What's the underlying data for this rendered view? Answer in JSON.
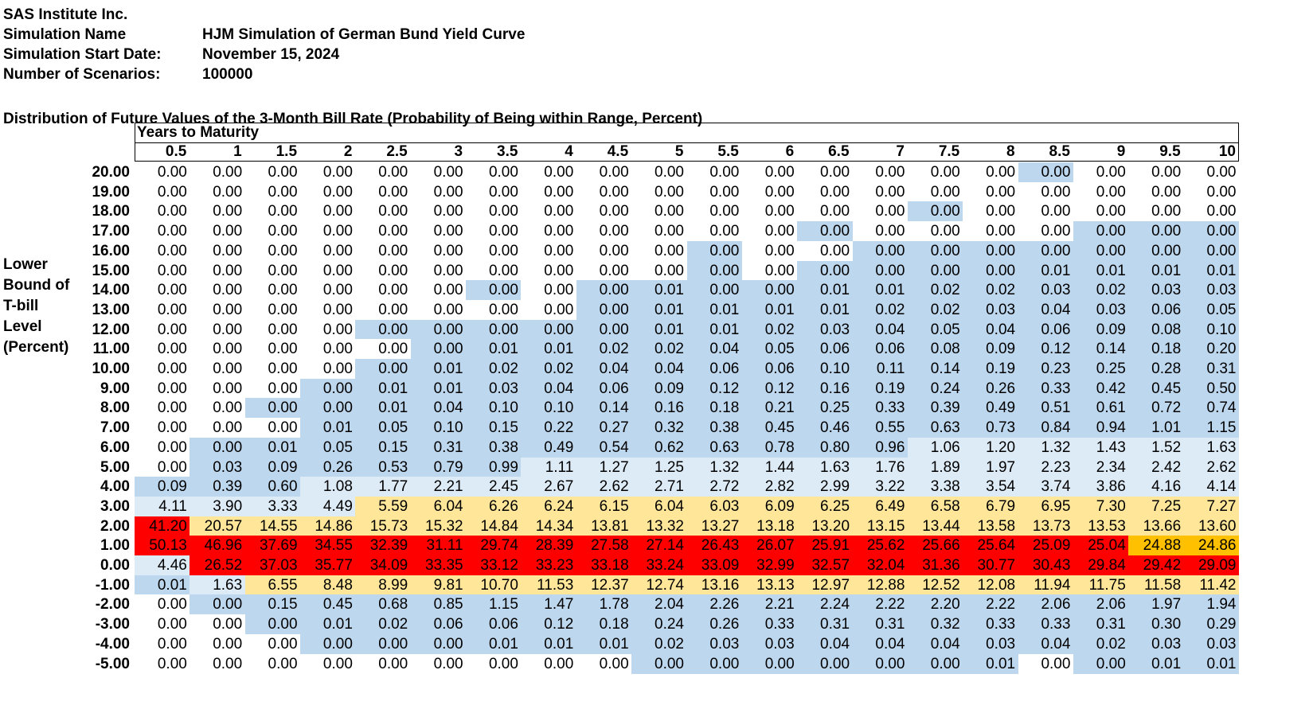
{
  "header": {
    "company": "SAS Institute Inc.",
    "rows": [
      {
        "label": "Simulation Name",
        "value": "HJM Simulation of German Bund Yield Curve"
      },
      {
        "label": "Simulation Start Date:",
        "value": "November 15, 2024"
      },
      {
        "label": "Number of Scenarios:",
        "value": "100000"
      }
    ]
  },
  "table": {
    "title": "Distribution of Future Values of the 3-Month Bill Rate (Probability of Being within Range, Percent)",
    "col_group_label": "Years to Maturity",
    "row_label": "Lower\nBound of\nT-bill\nLevel\n(Percent)",
    "columns": [
      "0.5",
      "1",
      "1.5",
      "2",
      "2.5",
      "3",
      "3.5",
      "4",
      "4.5",
      "5",
      "5.5",
      "6",
      "6.5",
      "7",
      "7.5",
      "8",
      "8.5",
      "9",
      "9.5",
      "10"
    ],
    "row_headers": [
      "20.00",
      "19.00",
      "18.00",
      "17.00",
      "16.00",
      "15.00",
      "14.00",
      "13.00",
      "12.00",
      "11.00",
      "10.00",
      "9.00",
      "8.00",
      "7.00",
      "6.00",
      "5.00",
      "4.00",
      "3.00",
      "2.00",
      "1.00",
      "0.00",
      "-1.00",
      "-2.00",
      "-3.00",
      "-4.00",
      "-5.00"
    ],
    "rows": [
      [
        "0.00",
        "0.00",
        "0.00",
        "0.00",
        "0.00",
        "0.00",
        "0.00",
        "0.00",
        "0.00",
        "0.00",
        "0.00",
        "0.00",
        "0.00",
        "0.00",
        "0.00",
        "0.00",
        "0.00",
        "0.00",
        "0.00",
        "0.00"
      ],
      [
        "0.00",
        "0.00",
        "0.00",
        "0.00",
        "0.00",
        "0.00",
        "0.00",
        "0.00",
        "0.00",
        "0.00",
        "0.00",
        "0.00",
        "0.00",
        "0.00",
        "0.00",
        "0.00",
        "0.00",
        "0.00",
        "0.00",
        "0.00"
      ],
      [
        "0.00",
        "0.00",
        "0.00",
        "0.00",
        "0.00",
        "0.00",
        "0.00",
        "0.00",
        "0.00",
        "0.00",
        "0.00",
        "0.00",
        "0.00",
        "0.00",
        "0.00",
        "0.00",
        "0.00",
        "0.00",
        "0.00",
        "0.00"
      ],
      [
        "0.00",
        "0.00",
        "0.00",
        "0.00",
        "0.00",
        "0.00",
        "0.00",
        "0.00",
        "0.00",
        "0.00",
        "0.00",
        "0.00",
        "0.00",
        "0.00",
        "0.00",
        "0.00",
        "0.00",
        "0.00",
        "0.00",
        "0.00"
      ],
      [
        "0.00",
        "0.00",
        "0.00",
        "0.00",
        "0.00",
        "0.00",
        "0.00",
        "0.00",
        "0.00",
        "0.00",
        "0.00",
        "0.00",
        "0.00",
        "0.00",
        "0.00",
        "0.00",
        "0.00",
        "0.00",
        "0.00",
        "0.00"
      ],
      [
        "0.00",
        "0.00",
        "0.00",
        "0.00",
        "0.00",
        "0.00",
        "0.00",
        "0.00",
        "0.00",
        "0.00",
        "0.00",
        "0.00",
        "0.00",
        "0.00",
        "0.00",
        "0.00",
        "0.01",
        "0.01",
        "0.01",
        "0.01"
      ],
      [
        "0.00",
        "0.00",
        "0.00",
        "0.00",
        "0.00",
        "0.00",
        "0.00",
        "0.00",
        "0.00",
        "0.01",
        "0.00",
        "0.00",
        "0.01",
        "0.01",
        "0.02",
        "0.02",
        "0.03",
        "0.02",
        "0.03",
        "0.03"
      ],
      [
        "0.00",
        "0.00",
        "0.00",
        "0.00",
        "0.00",
        "0.00",
        "0.00",
        "0.00",
        "0.00",
        "0.01",
        "0.01",
        "0.01",
        "0.01",
        "0.02",
        "0.02",
        "0.03",
        "0.04",
        "0.03",
        "0.06",
        "0.05"
      ],
      [
        "0.00",
        "0.00",
        "0.00",
        "0.00",
        "0.00",
        "0.00",
        "0.00",
        "0.00",
        "0.00",
        "0.01",
        "0.01",
        "0.02",
        "0.03",
        "0.04",
        "0.05",
        "0.04",
        "0.06",
        "0.09",
        "0.08",
        "0.10"
      ],
      [
        "0.00",
        "0.00",
        "0.00",
        "0.00",
        "0.00",
        "0.00",
        "0.01",
        "0.01",
        "0.02",
        "0.02",
        "0.04",
        "0.05",
        "0.06",
        "0.06",
        "0.08",
        "0.09",
        "0.12",
        "0.14",
        "0.18",
        "0.20"
      ],
      [
        "0.00",
        "0.00",
        "0.00",
        "0.00",
        "0.00",
        "0.01",
        "0.02",
        "0.02",
        "0.04",
        "0.04",
        "0.06",
        "0.06",
        "0.10",
        "0.11",
        "0.14",
        "0.19",
        "0.23",
        "0.25",
        "0.28",
        "0.31"
      ],
      [
        "0.00",
        "0.00",
        "0.00",
        "0.00",
        "0.01",
        "0.01",
        "0.03",
        "0.04",
        "0.06",
        "0.09",
        "0.12",
        "0.12",
        "0.16",
        "0.19",
        "0.24",
        "0.26",
        "0.33",
        "0.42",
        "0.45",
        "0.50"
      ],
      [
        "0.00",
        "0.00",
        "0.00",
        "0.00",
        "0.01",
        "0.04",
        "0.10",
        "0.10",
        "0.14",
        "0.16",
        "0.18",
        "0.21",
        "0.25",
        "0.33",
        "0.39",
        "0.49",
        "0.51",
        "0.61",
        "0.72",
        "0.74"
      ],
      [
        "0.00",
        "0.00",
        "0.00",
        "0.01",
        "0.05",
        "0.10",
        "0.15",
        "0.22",
        "0.27",
        "0.32",
        "0.38",
        "0.45",
        "0.46",
        "0.55",
        "0.63",
        "0.73",
        "0.84",
        "0.94",
        "1.01",
        "1.15"
      ],
      [
        "0.00",
        "0.00",
        "0.01",
        "0.05",
        "0.15",
        "0.31",
        "0.38",
        "0.49",
        "0.54",
        "0.62",
        "0.63",
        "0.78",
        "0.80",
        "0.96",
        "1.06",
        "1.20",
        "1.32",
        "1.43",
        "1.52",
        "1.63"
      ],
      [
        "0.00",
        "0.03",
        "0.09",
        "0.26",
        "0.53",
        "0.79",
        "0.99",
        "1.11",
        "1.27",
        "1.25",
        "1.32",
        "1.44",
        "1.63",
        "1.76",
        "1.89",
        "1.97",
        "2.23",
        "2.34",
        "2.42",
        "2.62"
      ],
      [
        "0.09",
        "0.39",
        "0.60",
        "1.08",
        "1.77",
        "2.21",
        "2.45",
        "2.67",
        "2.62",
        "2.71",
        "2.72",
        "2.82",
        "2.99",
        "3.22",
        "3.38",
        "3.54",
        "3.74",
        "3.86",
        "4.16",
        "4.14"
      ],
      [
        "4.11",
        "3.90",
        "3.33",
        "4.49",
        "5.59",
        "6.04",
        "6.26",
        "6.24",
        "6.15",
        "6.04",
        "6.03",
        "6.09",
        "6.25",
        "6.49",
        "6.58",
        "6.79",
        "6.95",
        "7.30",
        "7.25",
        "7.27"
      ],
      [
        "41.20",
        "20.57",
        "14.55",
        "14.86",
        "15.73",
        "15.32",
        "14.84",
        "14.34",
        "13.81",
        "13.32",
        "13.27",
        "13.18",
        "13.20",
        "13.15",
        "13.44",
        "13.58",
        "13.73",
        "13.53",
        "13.66",
        "13.60"
      ],
      [
        "50.13",
        "46.96",
        "37.69",
        "34.55",
        "32.39",
        "31.11",
        "29.74",
        "28.39",
        "27.58",
        "27.14",
        "26.43",
        "26.07",
        "25.91",
        "25.62",
        "25.66",
        "25.64",
        "25.09",
        "25.04",
        "24.88",
        "24.86"
      ],
      [
        "4.46",
        "26.52",
        "37.03",
        "35.77",
        "34.09",
        "33.35",
        "33.12",
        "33.23",
        "33.18",
        "33.24",
        "33.09",
        "32.99",
        "32.57",
        "32.04",
        "31.36",
        "30.77",
        "30.43",
        "29.84",
        "29.42",
        "29.09"
      ],
      [
        "0.01",
        "1.63",
        "6.55",
        "8.48",
        "8.99",
        "9.81",
        "10.70",
        "11.53",
        "12.37",
        "12.74",
        "13.16",
        "13.13",
        "12.97",
        "12.88",
        "12.52",
        "12.08",
        "11.94",
        "11.75",
        "11.58",
        "11.42"
      ],
      [
        "0.00",
        "0.00",
        "0.15",
        "0.45",
        "0.68",
        "0.85",
        "1.15",
        "1.47",
        "1.78",
        "2.04",
        "2.26",
        "2.21",
        "2.24",
        "2.22",
        "2.20",
        "2.22",
        "2.06",
        "2.06",
        "1.97",
        "1.94"
      ],
      [
        "0.00",
        "0.00",
        "0.00",
        "0.01",
        "0.02",
        "0.06",
        "0.06",
        "0.12",
        "0.18",
        "0.24",
        "0.26",
        "0.33",
        "0.31",
        "0.31",
        "0.32",
        "0.33",
        "0.33",
        "0.31",
        "0.30",
        "0.29"
      ],
      [
        "0.00",
        "0.00",
        "0.00",
        "0.00",
        "0.00",
        "0.00",
        "0.01",
        "0.01",
        "0.01",
        "0.02",
        "0.03",
        "0.03",
        "0.04",
        "0.04",
        "0.04",
        "0.03",
        "0.04",
        "0.02",
        "0.03",
        "0.03"
      ],
      [
        "0.00",
        "0.00",
        "0.00",
        "0.00",
        "0.00",
        "0.00",
        "0.00",
        "0.00",
        "0.00",
        "0.00",
        "0.00",
        "0.00",
        "0.00",
        "0.00",
        "0.00",
        "0.01",
        "0.00",
        "0.00",
        "0.01",
        "0.01"
      ]
    ],
    "fills": [
      "WWWWWWWWWWWWWWWWBWWW",
      "WWWWWWWWWWWWWWWWWWWW",
      "WWWWWWWWWWWWWWBWWWWW",
      "WWWWWWWWWWWWBWWWWBBB",
      "WWWWWWWWWWBWWBBBBBBB",
      "WWWWWWWWWWBWBBBBBBBB",
      "WWWWWWBWBBBBBBBBBBBB",
      "WWWWWWWWBBBBBBBBBBBB",
      "WWWWBBBBBBBBBBBBBBBB",
      "WWWWWBBBBBBBBBBBBBBB",
      "WWWWBBBBBBBBBBBBBBBB",
      "WWWBBBBBBBBBBBBBBBBB",
      "WWBBBBBBBBBBBBBBBBBB",
      "WWWBBBBBBBBBBBBBBBBB",
      "WBBBBBBBBBBBBBLLLLLL",
      "WBBBBBBLLLLLLLLLLLLL",
      "BBBLLLLLLLLLLLLLLLLL",
      "LLLLYYYYYYYYYYYYYYYY",
      "RYYYYYYYYYYYYYYYYYYY",
      "RRRRRRRRRRRRRRRRRROO",
      "LRRRRRRRRRRRRRRRRRRR",
      "BLYYYYYYYYYYYYYYYYYY",
      "WBBBBBBBBBBBBBBBBBBB",
      "WWBBBBBBBBBBBBBBBBBB",
      "WWWBBBBBBBBBBBBBBBBB",
      "WWWWWWWWWBBBBBBBWBBB"
    ]
  },
  "colors": {
    "W": "#ffffff",
    "B": "#bdd7ee",
    "L": "#ddebf7",
    "Y": "#ffe699",
    "O": "#ffc000",
    "R": "#ff0000"
  }
}
